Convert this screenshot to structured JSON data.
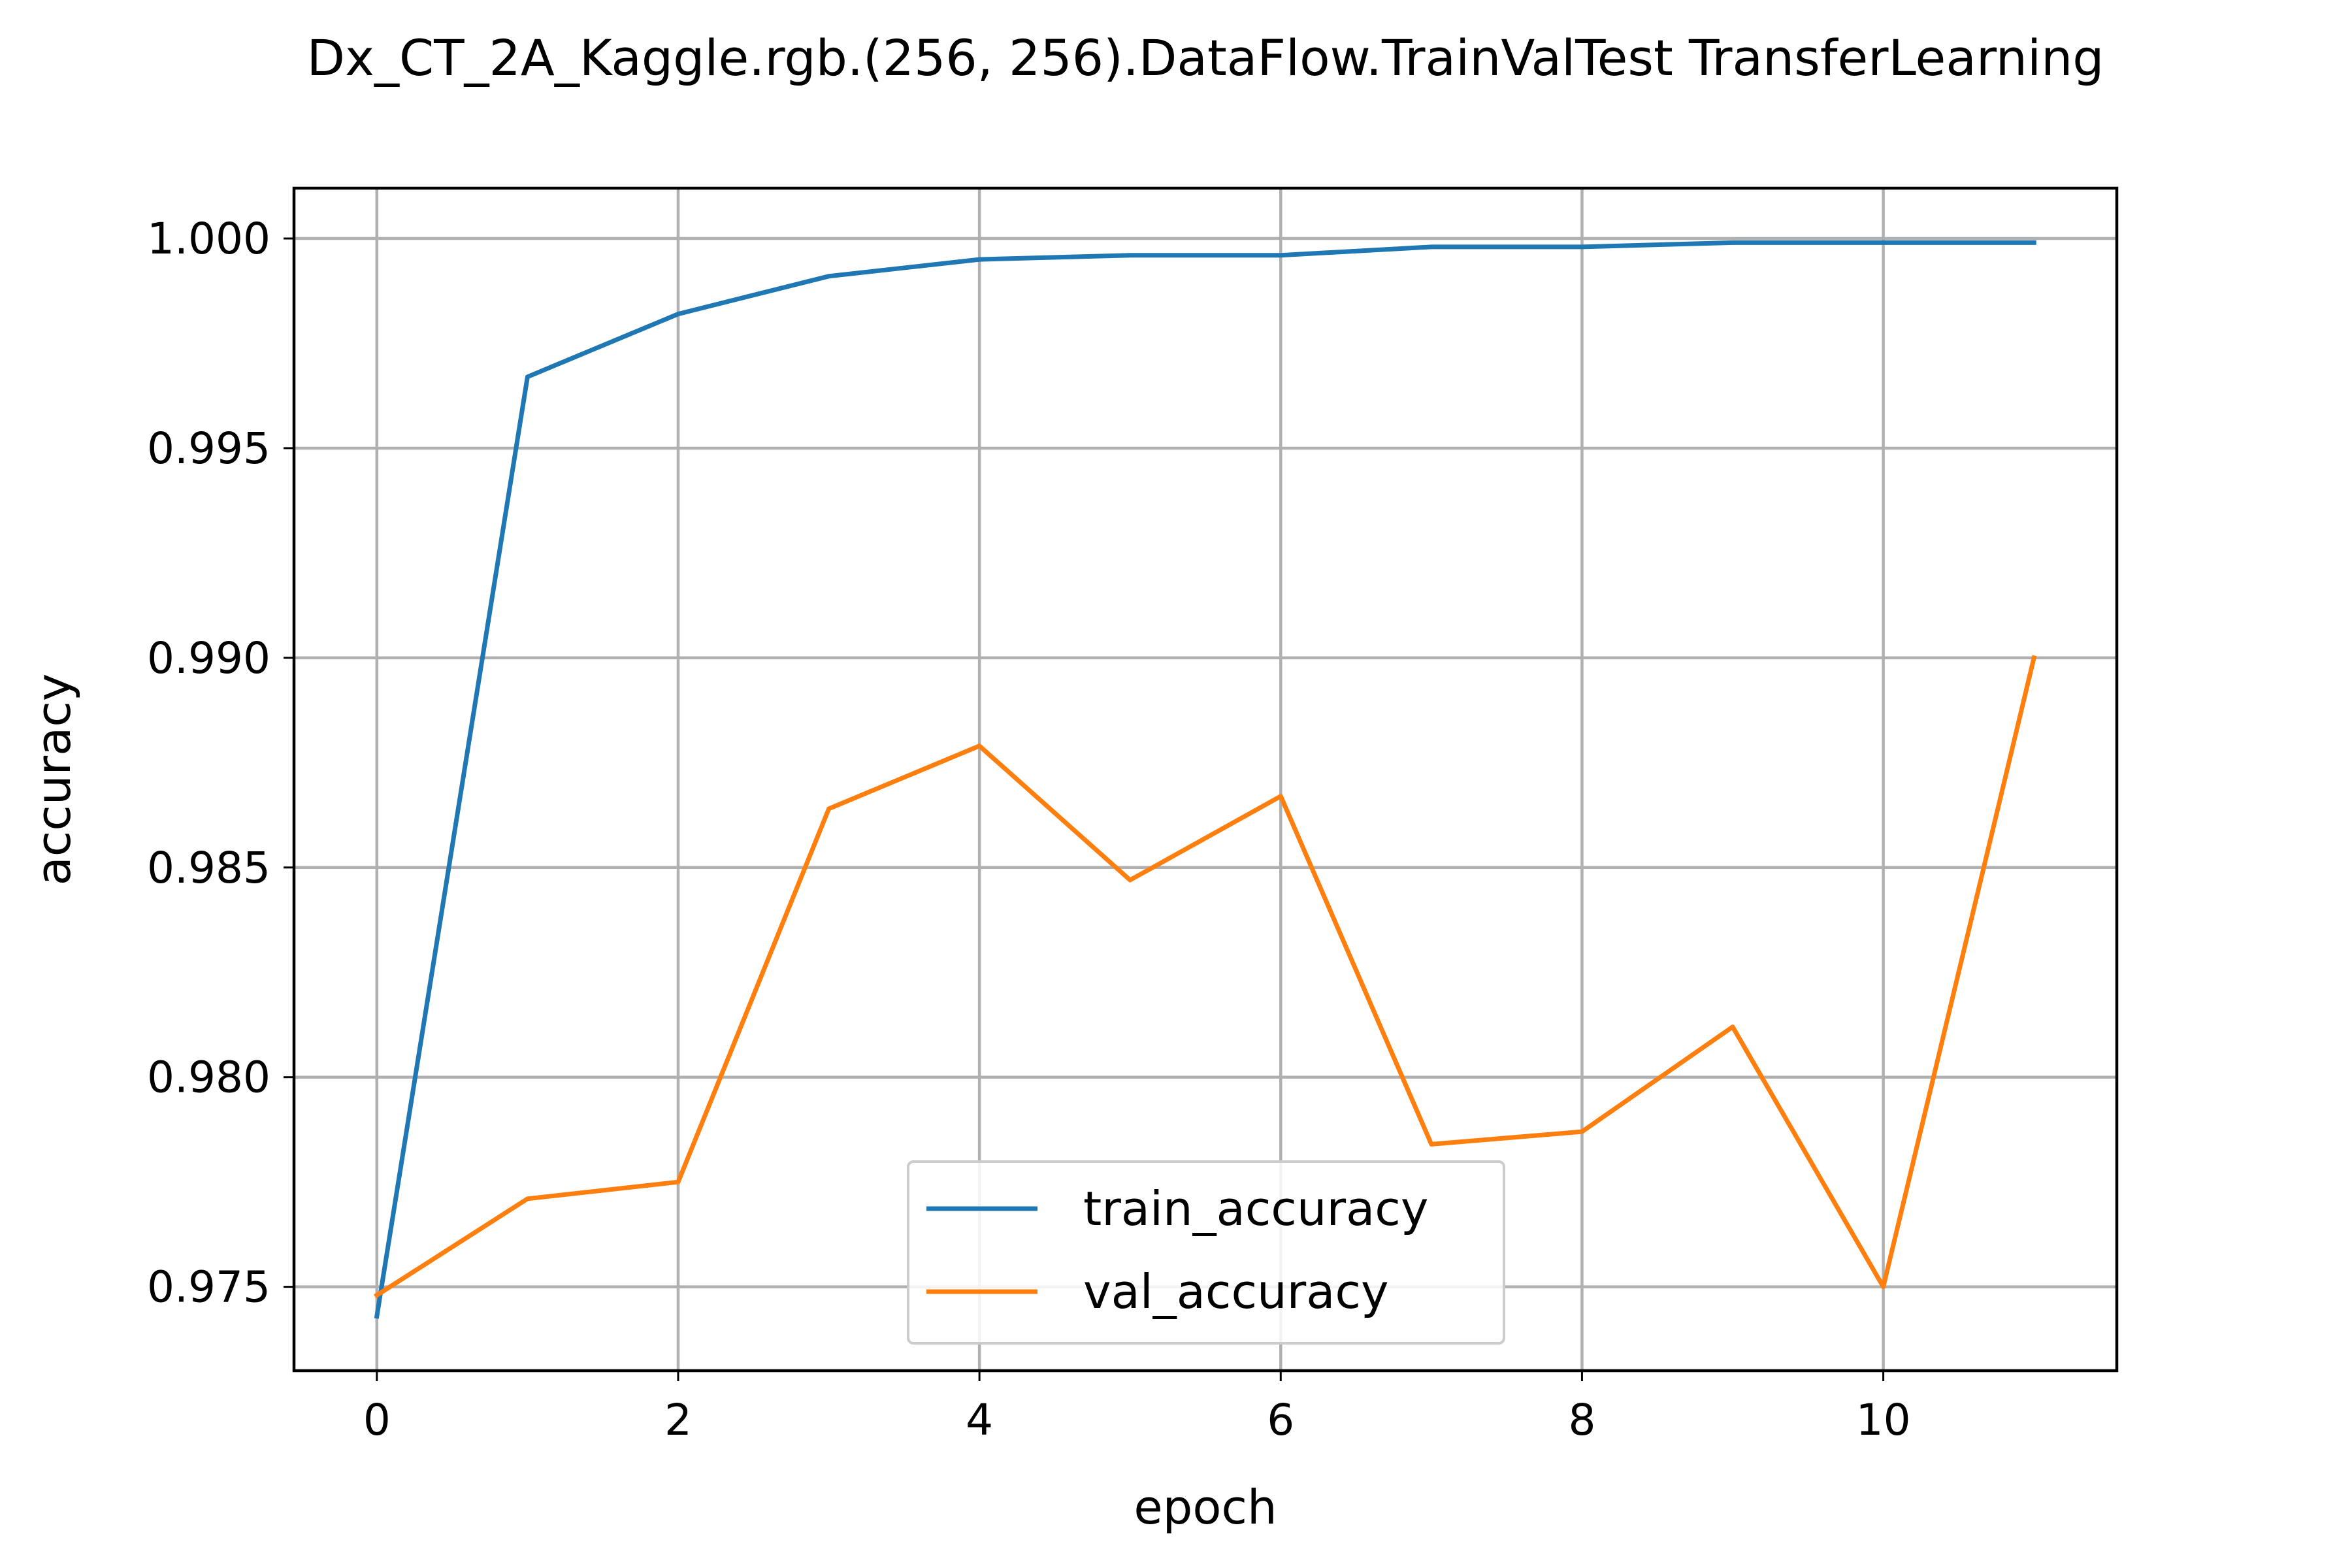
{
  "chart_data": {
    "type": "line",
    "title": "Dx_CT_2A_Kaggle.rgb.(256, 256).DataFlow.TrainValTest TransferLearning",
    "xlabel": "epoch",
    "ylabel": "accuracy",
    "x": [
      0,
      1,
      2,
      3,
      4,
      5,
      6,
      7,
      8,
      9,
      10,
      11
    ],
    "xlim": [
      -0.55,
      11.55
    ],
    "ylim": [
      0.973,
      1.0012
    ],
    "xticks": [
      0,
      2,
      4,
      6,
      8,
      10
    ],
    "xtick_labels": [
      "0",
      "2",
      "4",
      "6",
      "8",
      "10"
    ],
    "yticks": [
      0.975,
      0.98,
      0.985,
      0.99,
      0.995,
      1.0
    ],
    "ytick_labels": [
      "0.975",
      "0.980",
      "0.985",
      "0.990",
      "0.995",
      "1.000"
    ],
    "grid": true,
    "legend_position": "lower center",
    "series": [
      {
        "name": "train_accuracy",
        "color": "#1f77b4",
        "values": [
          0.9743,
          0.9967,
          0.9982,
          0.9991,
          0.9995,
          0.9996,
          0.9996,
          0.9998,
          0.9998,
          0.9999,
          0.9999,
          0.9999
        ]
      },
      {
        "name": "val_accuracy",
        "color": "#ff7f0e",
        "values": [
          0.9748,
          0.9771,
          0.9775,
          0.9864,
          0.9879,
          0.9847,
          0.9867,
          0.9784,
          0.9787,
          0.9812,
          0.975,
          0.99
        ]
      }
    ]
  }
}
